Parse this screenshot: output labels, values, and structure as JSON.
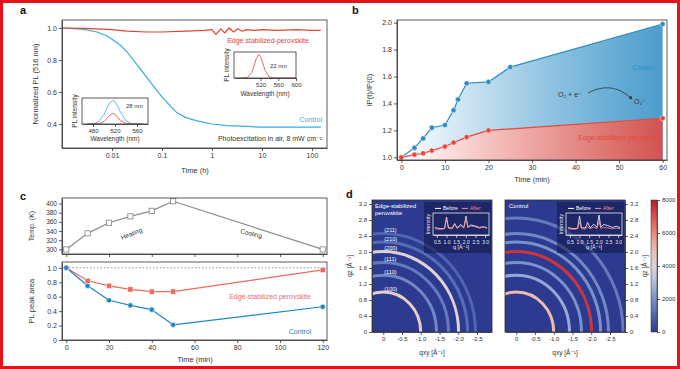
{
  "chart_data": [
    {
      "type": "line",
      "title": "a",
      "xlabel": "Time (h)",
      "ylabel": "Normalized PL (516 nm)",
      "log": "x",
      "xlim": [
        0.001,
        200
      ],
      "ylim": [
        0.25,
        1.05
      ],
      "xticks": [
        0.01,
        0.1,
        1,
        10,
        100
      ],
      "yticks": [
        0.4,
        0.6,
        0.8,
        {
          "value": 1,
          "label": "1.0"
        }
      ],
      "annotations": [
        "Photoexcitation in air, 8 mW cm⁻²"
      ],
      "series": [
        {
          "name": "Control",
          "color": "#35aee0",
          "x": [
            0.001,
            0.002,
            0.003,
            0.005,
            0.008,
            0.01,
            0.015,
            0.02,
            0.03,
            0.05,
            0.07,
            0.1,
            0.15,
            0.2,
            0.3,
            0.5,
            1,
            2,
            5,
            10,
            50,
            150
          ],
          "values": [
            1.0,
            0.995,
            0.99,
            0.975,
            0.95,
            0.93,
            0.89,
            0.85,
            0.78,
            0.69,
            0.63,
            0.57,
            0.51,
            0.47,
            0.44,
            0.42,
            0.4,
            0.39,
            0.385,
            0.38,
            0.38,
            0.38
          ]
        },
        {
          "name": "Edge stabilized-perovskite",
          "color": "#e2452b",
          "x": [
            0.001,
            0.003,
            0.01,
            0.02,
            0.05,
            0.1,
            0.3,
            0.7,
            1,
            1.2,
            1.5,
            1.8,
            2.2,
            2.7,
            3.3,
            4,
            5,
            7,
            10,
            20,
            50,
            100,
            150
          ],
          "values": [
            1.0,
            0.998,
            0.99,
            0.98,
            0.975,
            0.975,
            0.98,
            0.985,
            0.99,
            0.96,
            0.995,
            0.97,
            1.0,
            0.975,
            0.995,
            0.98,
            0.99,
            0.985,
            0.99,
            0.985,
            0.99,
            0.985,
            0.985
          ]
        }
      ]
    },
    {
      "type": "line",
      "xlabel": "Wavelength (nm)",
      "ylabel": "PL intensity",
      "xlim": [
        460,
        600
      ],
      "ylim": [
        0,
        1.1
      ],
      "xticks": [
        520,
        560,
        600
      ],
      "tick_labels": "x",
      "annotations": [
        "22 nm"
      ],
      "series": [
        {
          "color": "#e2452b",
          "x": [
            470,
            480,
            490,
            500,
            505,
            510,
            516,
            520,
            525,
            530,
            540,
            550,
            560,
            580,
            600
          ],
          "values": [
            0,
            0.001,
            0.02,
            0.23,
            0.5,
            0.81,
            1,
            0.91,
            0.63,
            0.33,
            0.04,
            0.001,
            0,
            0,
            0
          ]
        }
      ]
    },
    {
      "type": "line",
      "xlabel": "Wavelength (nm)",
      "ylabel": "PL intensity",
      "xlim": [
        460,
        580
      ],
      "ylim": [
        0,
        1.1
      ],
      "xticks": [
        480,
        520,
        560
      ],
      "tick_labels": "x",
      "annotations": [
        "28 nm"
      ],
      "series": [
        {
          "color": "#35aee0",
          "x": [
            470,
            480,
            490,
            500,
            505,
            510,
            516,
            520,
            525,
            530,
            540,
            550,
            560,
            570
          ],
          "values": [
            0,
            0.01,
            0.09,
            0.4,
            0.65,
            0.88,
            1,
            0.94,
            0.75,
            0.5,
            0.13,
            0.02,
            0,
            0
          ]
        },
        {
          "color": "#e2452b",
          "x": [
            470,
            480,
            490,
            500,
            505,
            510,
            516,
            520,
            525,
            530,
            540,
            550,
            560,
            570
          ],
          "values": [
            0,
            0,
            0.01,
            0.1,
            0.23,
            0.36,
            0.45,
            0.41,
            0.28,
            0.15,
            0.02,
            0,
            0,
            0
          ]
        }
      ]
    },
    {
      "type": "line",
      "title": "b",
      "xlabel": "Time (min)",
      "ylabel": "IP(t)/IP(0)",
      "xlim": [
        -1,
        61
      ],
      "ylim": [
        0.98,
        2.02
      ],
      "xticks": [
        0,
        10,
        20,
        30,
        40,
        50,
        60
      ],
      "yticks": [
        {
          "value": 1,
          "label": "1.0"
        },
        1.2,
        1.4,
        1.6,
        1.8,
        {
          "value": 2,
          "label": "2.0"
        }
      ],
      "annotations": [
        "O₂ + e⁻",
        "O₂⁻"
      ],
      "series": [
        {
          "name": "Control",
          "color": "#2b8cc4",
          "marker": "circle",
          "x": [
            0,
            3,
            5,
            7,
            10,
            12,
            13,
            15,
            20,
            25,
            60
          ],
          "values": [
            1.0,
            1.07,
            1.14,
            1.22,
            1.24,
            1.35,
            1.43,
            1.55,
            1.56,
            1.67,
            1.99
          ]
        },
        {
          "name": "Edge-stabilized perovskite",
          "color": "#e8463a",
          "marker": "circle",
          "x": [
            0,
            3,
            5,
            7,
            10,
            12,
            15,
            20,
            60
          ],
          "values": [
            1.0,
            1.02,
            1.03,
            1.05,
            1.08,
            1.11,
            1.15,
            1.2,
            1.29
          ]
        }
      ]
    },
    {
      "type": "line",
      "title": "c",
      "ylabel": "Temp. (K)",
      "xlim": [
        -2,
        122
      ],
      "ylim": [
        290,
        412
      ],
      "xticks": [
        0,
        20,
        40,
        60,
        80,
        100,
        120
      ],
      "yticks": [
        300,
        320,
        340,
        360,
        380,
        400
      ],
      "tick_labels": "y",
      "annotations": [
        "Heating",
        "Cooling"
      ],
      "series": [
        {
          "color": "#8c8c8c",
          "marker": "open-square",
          "x": [
            0,
            10,
            20,
            30,
            40,
            50,
            120
          ],
          "values": [
            300,
            335,
            358,
            372,
            384,
            405,
            300
          ]
        }
      ]
    },
    {
      "type": "line",
      "xlabel": "Time (min)",
      "ylabel": "PL peak area",
      "xlim": [
        -2,
        122
      ],
      "ylim": [
        0,
        1.08
      ],
      "xticks": [
        0,
        20,
        40,
        60,
        80,
        100,
        120
      ],
      "yticks": [
        0,
        0.2,
        0.4,
        0.6,
        0.8,
        {
          "value": 1,
          "label": "1.0"
        }
      ],
      "hline": 1,
      "series": [
        {
          "name": "Edge-stabilized perovskite",
          "color": "#ee6a5e",
          "marker": "square",
          "x": [
            0,
            10,
            20,
            30,
            40,
            50,
            120
          ],
          "values": [
            1.0,
            0.82,
            0.75,
            0.7,
            0.67,
            0.67,
            0.97
          ]
        },
        {
          "name": "Control",
          "color": "#1f86c1",
          "marker": "circle",
          "x": [
            0,
            10,
            20,
            30,
            40,
            50,
            120
          ],
          "values": [
            1.0,
            0.75,
            0.55,
            0.48,
            0.42,
            0.21,
            0.46
          ]
        }
      ]
    },
    {
      "type": "heatmap",
      "title": "d",
      "subtitle": "Edge-stabilized perovskite",
      "xlabel": "qxy [Å⁻¹]",
      "ylabel": "qz [Å⁻¹]",
      "xlim": [
        0.3,
        -2.9
      ],
      "ylim": [
        0,
        3.3
      ],
      "xticks": [
        0,
        -0.5,
        {
          "value": -1,
          "label": "-1.0"
        },
        -1.5,
        {
          "value": -2,
          "label": "-2.0"
        },
        -2.5
      ],
      "yticks": [
        0,
        0.4,
        0.8,
        1.2,
        1.6,
        {
          "value": 2,
          "label": "2.0"
        },
        2.4,
        2.8,
        3.2
      ],
      "ring_q": [
        1.0,
        1.42,
        1.74,
        2.01,
        2.25,
        2.46
      ],
      "ring_intensity": [
        4500,
        1800,
        1500,
        4000,
        1200,
        1000
      ],
      "ring_labels": [
        "(100)",
        "(110)",
        "(111)",
        "(200)",
        "(210)",
        "(211)"
      ]
    },
    {
      "type": "line",
      "xlabel": "q [Å⁻¹]",
      "ylabel": "Intensity",
      "legend": "upper right",
      "xlim": [
        0.3,
        3.2
      ],
      "ylim": [
        0,
        1.05
      ],
      "xticks": [
        0.5,
        {
          "value": 1,
          "label": "1.0"
        },
        1.5,
        {
          "value": 2,
          "label": "2.0"
        },
        2.5,
        {
          "value": 3,
          "label": "3.0"
        }
      ],
      "tick_labels": "x",
      "series": [
        {
          "name": "Before",
          "color": "#ffffff",
          "x": [
            0.4,
            0.7,
            0.9,
            1.0,
            1.1,
            1.3,
            1.42,
            1.55,
            1.74,
            1.9,
            2.01,
            2.1,
            2.25,
            2.46,
            2.7,
            2.9,
            3.1
          ],
          "values": [
            0.35,
            0.3,
            0.32,
            0.85,
            0.35,
            0.33,
            0.55,
            0.34,
            0.5,
            0.36,
            0.9,
            0.38,
            0.48,
            0.44,
            0.36,
            0.4,
            0.35
          ]
        },
        {
          "name": "After",
          "color": "#ff8a8a",
          "x": [
            0.4,
            0.7,
            0.9,
            1.0,
            1.1,
            1.3,
            1.42,
            1.55,
            1.74,
            1.9,
            2.01,
            2.1,
            2.25,
            2.46,
            2.7,
            2.9,
            3.1
          ],
          "values": [
            0.3,
            0.27,
            0.3,
            0.78,
            0.32,
            0.3,
            0.5,
            0.31,
            0.45,
            0.33,
            0.82,
            0.35,
            0.43,
            0.4,
            0.33,
            0.37,
            0.32
          ]
        }
      ]
    },
    {
      "type": "heatmap",
      "subtitle": "Control",
      "xlabel": "qxy [Å⁻¹]",
      "ylabel": "qz [Å⁻¹]",
      "xlim": [
        0.3,
        -2.9
      ],
      "ylim": [
        0,
        3.3
      ],
      "xticks": [
        0,
        -0.5,
        {
          "value": -1,
          "label": "-1.0"
        },
        -1.5,
        {
          "value": -2,
          "label": "-2.0"
        },
        -2.5
      ],
      "yticks": [
        0,
        0.4,
        0.8,
        1.2,
        1.6,
        {
          "value": 2,
          "label": "2.0"
        },
        2.4,
        2.8,
        3.2
      ],
      "ring_q": [
        1.0,
        1.42,
        1.74,
        2.01,
        2.25,
        2.46,
        2.85
      ],
      "ring_intensity": [
        5000,
        2500,
        2000,
        7500,
        2000,
        1800,
        1500
      ],
      "clim": [
        0,
        8000
      ],
      "cticks": [
        0,
        2000,
        4000,
        6000,
        8000
      ]
    },
    {
      "type": "line",
      "xlabel": "q [Å⁻¹]",
      "ylabel": "Intensity",
      "legend": "upper right",
      "xlim": [
        0.3,
        3.2
      ],
      "ylim": [
        0,
        1.05
      ],
      "xticks": [
        0.5,
        {
          "value": 1,
          "label": "1.0"
        },
        1.5,
        {
          "value": 2,
          "label": "2.0"
        },
        2.5,
        {
          "value": 3,
          "label": "3.0"
        }
      ],
      "tick_labels": "x",
      "series": [
        {
          "name": "Before",
          "color": "#ffffff",
          "x": [
            0.4,
            0.7,
            0.9,
            1.0,
            1.1,
            1.3,
            1.42,
            1.55,
            1.74,
            1.9,
            2.01,
            2.1,
            2.25,
            2.46,
            2.7,
            2.9,
            3.1
          ],
          "values": [
            0.35,
            0.3,
            0.32,
            0.9,
            0.35,
            0.33,
            0.6,
            0.34,
            0.52,
            0.36,
            0.95,
            0.38,
            0.5,
            0.45,
            0.36,
            0.42,
            0.35
          ]
        },
        {
          "name": "After",
          "color": "#ff8a8a",
          "x": [
            0.4,
            0.7,
            0.9,
            1.0,
            1.1,
            1.3,
            1.42,
            1.55,
            1.74,
            1.9,
            2.01,
            2.1,
            2.25,
            2.46,
            2.7,
            2.9,
            3.1
          ],
          "values": [
            0.3,
            0.27,
            0.3,
            0.6,
            0.3,
            0.28,
            0.4,
            0.3,
            0.38,
            0.3,
            0.65,
            0.32,
            0.36,
            0.34,
            0.3,
            0.33,
            0.3
          ]
        }
      ]
    }
  ]
}
